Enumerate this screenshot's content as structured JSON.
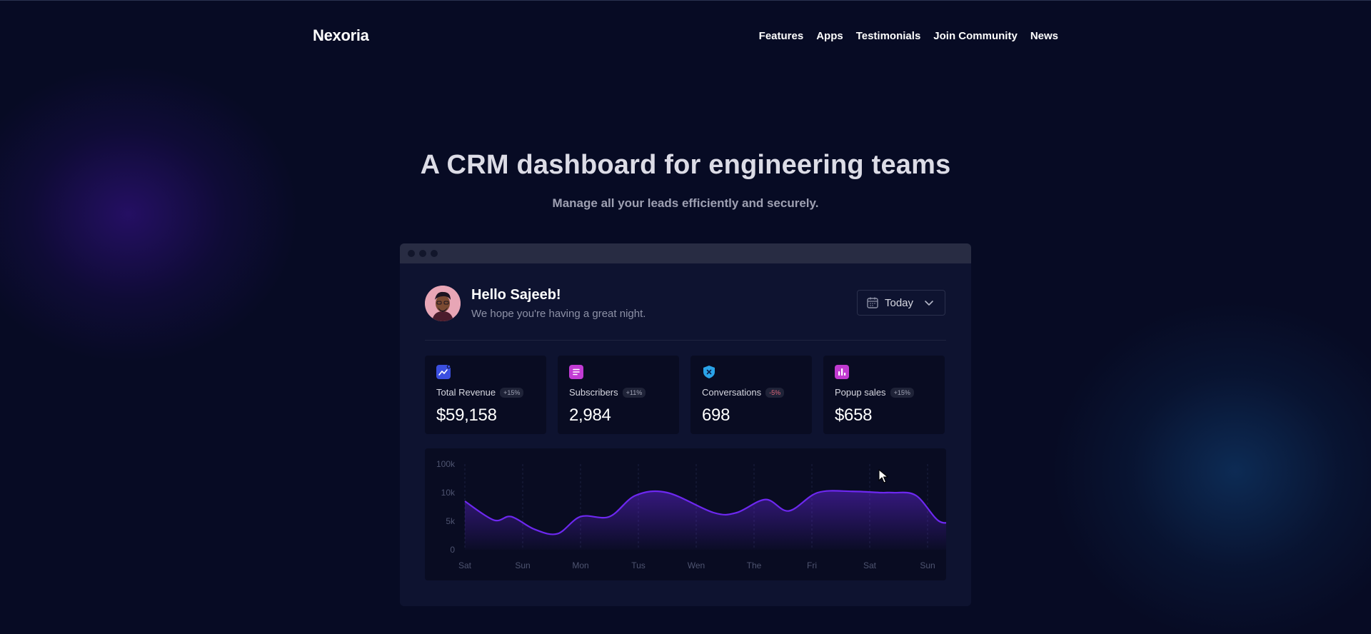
{
  "brand": {
    "name": "Nexoria"
  },
  "nav": {
    "links": [
      "Features",
      "Apps",
      "Testimonials",
      "Join Community",
      "News"
    ]
  },
  "hero": {
    "title": "A CRM dashboard for engineering teams",
    "subtitle": "Manage all your leads efficiently and securely."
  },
  "dashboard": {
    "greeting": "Hello Sajeeb!",
    "greeting_sub": "We hope you're having a great night.",
    "date_filter": "Today",
    "cards": [
      {
        "label": "Total Revenue",
        "badge": "+15%",
        "value": "$59,158",
        "icon": "trend-chart-icon",
        "color": "#3b4fe0",
        "negative": false
      },
      {
        "label": "Subscribers",
        "badge": "+11%",
        "value": "2,984",
        "icon": "list-icon",
        "color": "#c23bd4",
        "negative": false
      },
      {
        "label": "Conversations",
        "badge": "-5%",
        "value": "698",
        "icon": "shield-icon",
        "color": "#2aa3e8",
        "negative": true
      },
      {
        "label": "Popup sales",
        "badge": "+15%",
        "value": "$658",
        "icon": "bar-chart-icon",
        "color": "#c03ad0",
        "negative": false
      }
    ]
  },
  "colors": {
    "accent": "#6d28f0",
    "background": "#070b24",
    "panel": "#0e1330"
  },
  "chart_data": {
    "type": "area",
    "y_tick_labels": [
      "100k",
      "10k",
      "5k",
      "0"
    ],
    "x_tick_labels": [
      "Sat",
      "Sun",
      "Mon",
      "Tus",
      "Wen",
      "The",
      "Fri",
      "Sat",
      "Sun"
    ],
    "x": [
      0,
      0.5,
      0.8,
      1.2,
      1.6,
      2.0,
      2.5,
      2.95,
      3.5,
      4.3,
      4.7,
      5.2,
      5.6,
      6.1,
      6.7,
      7.2,
      7.4,
      7.8,
      8.2,
      8.5,
      8.8
    ],
    "values": [
      8500,
      5200,
      5800,
      3600,
      2800,
      5800,
      5800,
      9500,
      10000,
      6500,
      6500,
      8800,
      6800,
      10000,
      14000,
      10000,
      10000,
      9500,
      5000,
      5200,
      5800
    ],
    "highlight_point_index": 20,
    "grid": "vertical dashed",
    "color": "#6d28f0"
  }
}
